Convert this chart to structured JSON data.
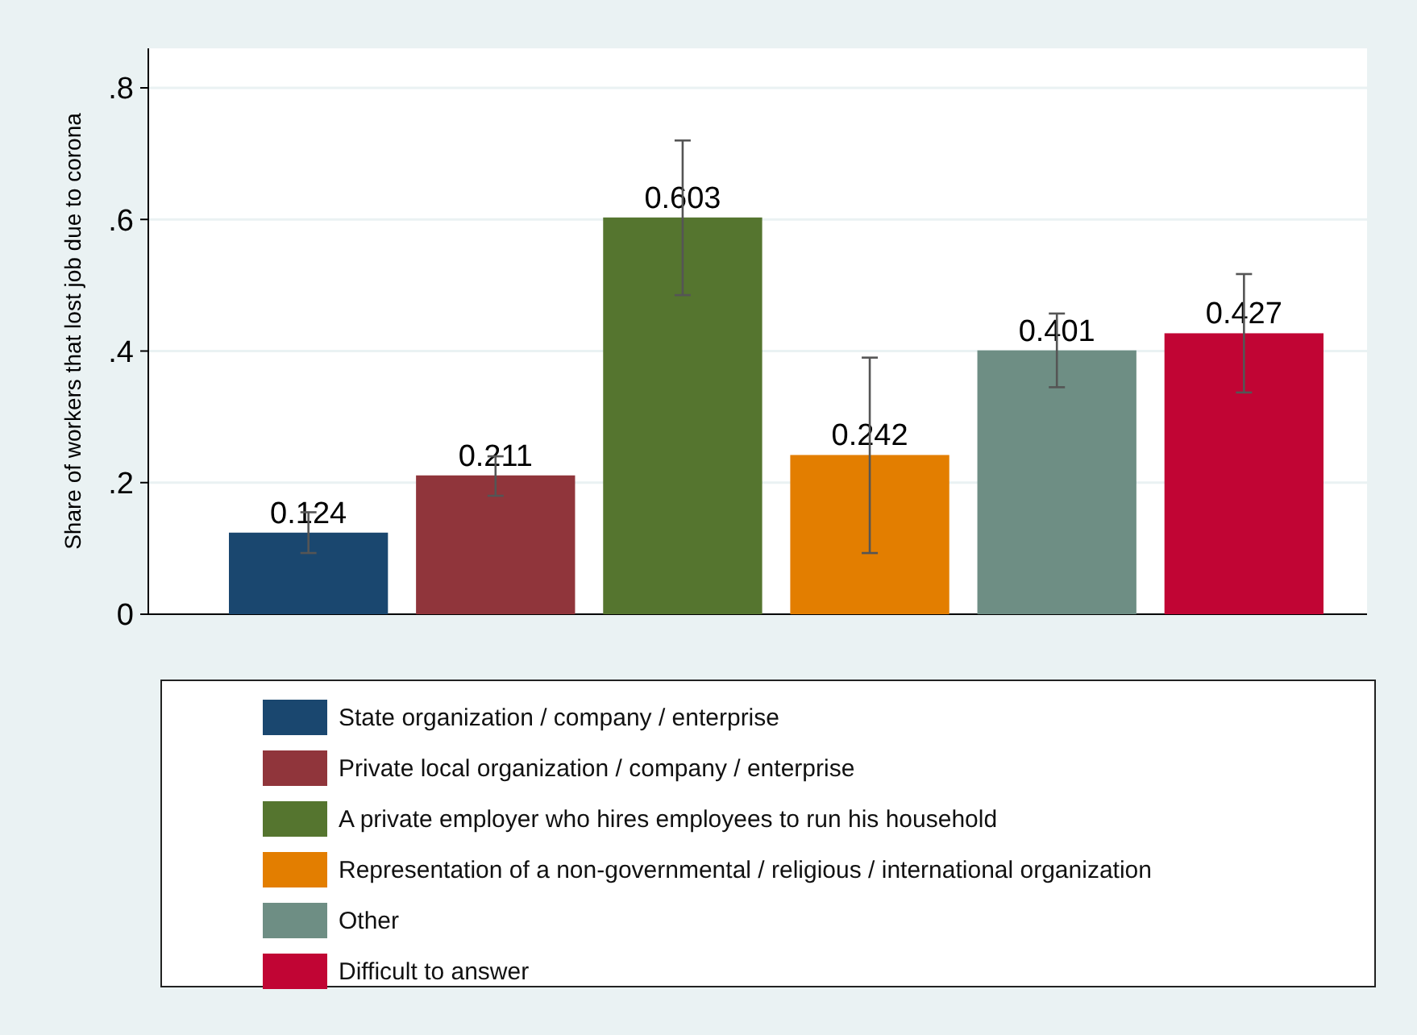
{
  "chart_data": {
    "type": "bar",
    "ylabel": "Share of workers that lost job due to corona",
    "categories": [
      null
    ],
    "series": [
      {
        "name": "State organization / company / enterprise",
        "color": "#1a476f",
        "values": [
          0.124
        ],
        "errors": [
          [
            0.093,
            0.155
          ]
        ]
      },
      {
        "name": "Private local organization / company / enterprise",
        "color": "#90353b",
        "values": [
          0.211
        ],
        "errors": [
          [
            0.18,
            0.24
          ]
        ]
      },
      {
        "name": "A private employer who hires employees to run his household",
        "color": "#55752f",
        "values": [
          0.603
        ],
        "errors": [
          [
            0.485,
            0.72
          ]
        ]
      },
      {
        "name": "Representation of a non-governmental / religious / international organization",
        "color": "#e37e00",
        "values": [
          0.242
        ],
        "errors": [
          [
            0.093,
            0.39
          ]
        ]
      },
      {
        "name": "Other",
        "color": "#6e8e84",
        "values": [
          0.401
        ],
        "errors": [
          [
            0.345,
            0.457
          ]
        ]
      },
      {
        "name": "Difficult to answer",
        "color": "#c10534",
        "values": [
          0.427
        ],
        "errors": [
          [
            0.337,
            0.517
          ]
        ]
      }
    ],
    "ylim": [
      0,
      0.86
    ],
    "yticks": [
      0,
      {
        "value": 0.2,
        "label": ".2"
      },
      {
        "value": 0.4,
        "label": ".4"
      },
      {
        "value": 0.6,
        "label": ".6"
      },
      {
        "value": 0.8,
        "label": ".8"
      }
    ],
    "grid": "y",
    "legend": "bottom",
    "data_labels": true
  }
}
